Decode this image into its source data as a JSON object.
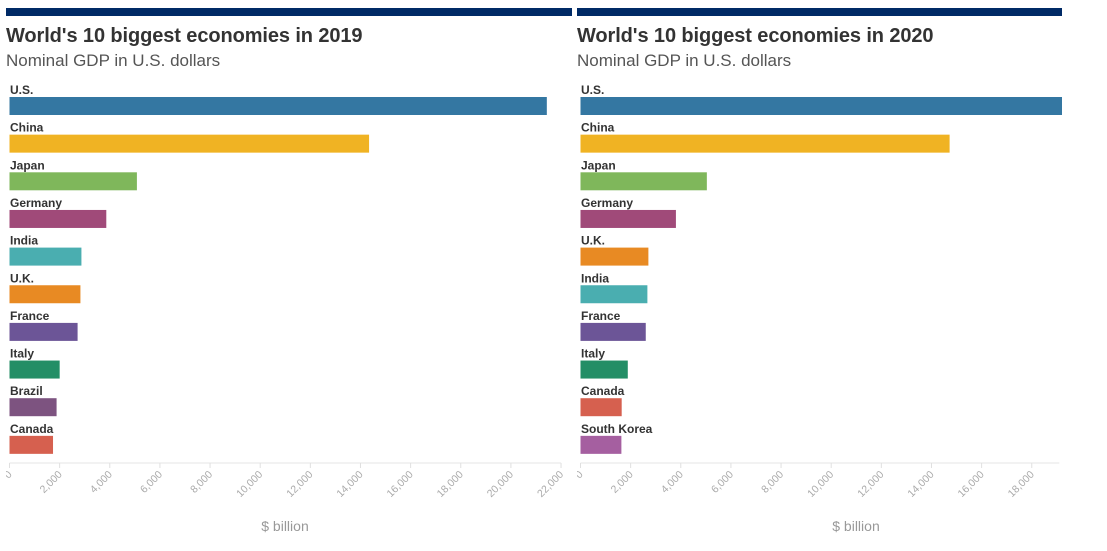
{
  "chart_data": [
    {
      "type": "bar",
      "orientation": "horizontal",
      "title": "World's 10 biggest economies in 2019",
      "subtitle": "Nominal GDP in U.S. dollars",
      "xlabel": "$ billion",
      "ylabel": "",
      "xlim": [
        0,
        22000
      ],
      "xticks": [
        0,
        2000,
        4000,
        6000,
        8000,
        10000,
        12000,
        14000,
        16000,
        18000,
        20000,
        22000
      ],
      "xtick_labels": [
        "0",
        "2,000",
        "4,000",
        "6,000",
        "8,000",
        "10,000",
        "12,000",
        "14,000",
        "16,000",
        "18,000",
        "20,000",
        "22,000"
      ],
      "grid": false,
      "categories": [
        "U.S.",
        "China",
        "Japan",
        "Germany",
        "India",
        "U.K.",
        "France",
        "Italy",
        "Brazil",
        "Canada"
      ],
      "values": [
        21433,
        14343,
        5082,
        3861,
        2869,
        2829,
        2716,
        2001,
        1878,
        1736
      ],
      "colors": [
        "#3477a2",
        "#f0b323",
        "#7fb75b",
        "#a04a79",
        "#4aaeb0",
        "#e88a23",
        "#6c5597",
        "#238e66",
        "#7d5380",
        "#d6604f"
      ]
    },
    {
      "type": "bar",
      "orientation": "horizontal",
      "title": "World's 10 biggest economies in 2020",
      "subtitle": "Nominal GDP in U.S. dollars",
      "xlabel": "$ billion",
      "ylabel": "",
      "xlim": [
        0,
        19100
      ],
      "xticks": [
        0,
        2000,
        4000,
        6000,
        8000,
        10000,
        12000,
        14000,
        16000,
        18000
      ],
      "xtick_labels": [
        "0",
        "2,000",
        "4,000",
        "6,000",
        "8,000",
        "10,000",
        "12,000",
        "14,000",
        "16,000",
        "18,000"
      ],
      "grid": false,
      "categories": [
        "U.S.",
        "China",
        "Japan",
        "Germany",
        "U.K.",
        "India",
        "France",
        "Italy",
        "Canada",
        "South Korea"
      ],
      "values": [
        20937,
        14723,
        5040,
        3806,
        2708,
        2668,
        2603,
        1886,
        1643,
        1631
      ],
      "colors": [
        "#3477a2",
        "#f0b323",
        "#7fb75b",
        "#a04a79",
        "#e88a23",
        "#4aaeb0",
        "#6c5597",
        "#238e66",
        "#d6604f",
        "#a55fa0"
      ]
    }
  ],
  "colors": {
    "header_bar": "#002a66"
  }
}
